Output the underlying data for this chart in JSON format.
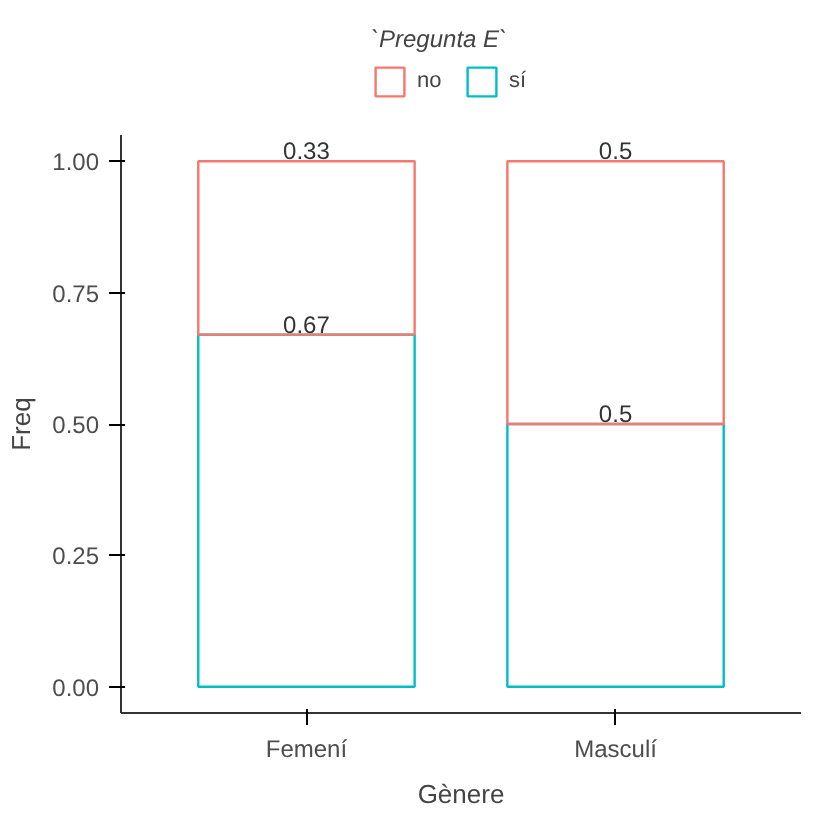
{
  "chart_data": {
    "type": "bar",
    "stacked": true,
    "categories": [
      "Femení",
      "Masculí"
    ],
    "xlabel": "Gènere",
    "ylabel": "Freq",
    "legend_title": "`Pregunta E`",
    "legend": "top",
    "series": [
      {
        "name": "sí",
        "color": "#00bfc4",
        "values": [
          0.67,
          0.5
        ]
      },
      {
        "name": "no",
        "color": "#f8766d",
        "values": [
          0.33,
          0.5
        ]
      }
    ],
    "ylim": [
      -0.05,
      1.05
    ],
    "yticks": [
      {
        "value": 0,
        "label": "0.00"
      },
      {
        "value": 0.25,
        "label": "0.25"
      },
      {
        "value": 0.5,
        "label": "0.50"
      },
      {
        "value": 0.75,
        "label": "0.75"
      },
      {
        "value": 1,
        "label": "1.00"
      }
    ],
    "data_labels": true,
    "grid": false
  }
}
